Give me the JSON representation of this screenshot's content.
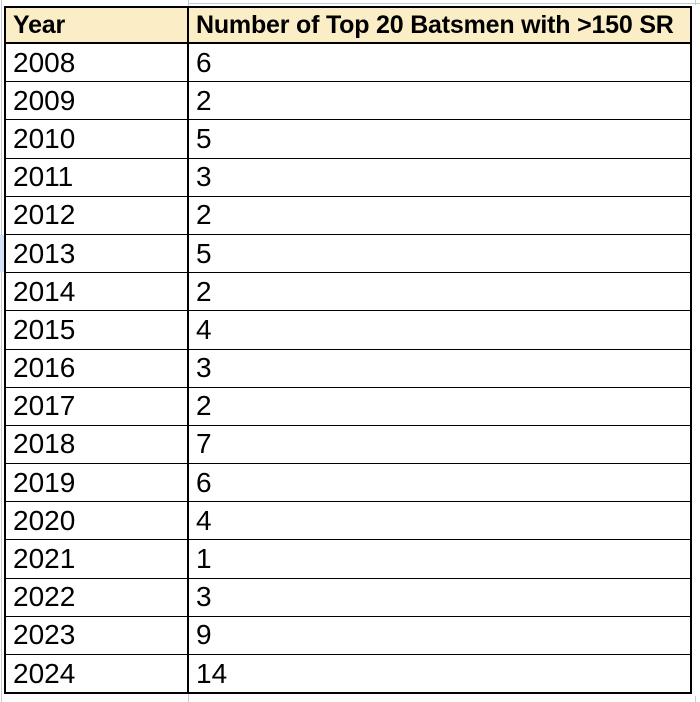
{
  "table": {
    "header": {
      "year_label": "Year",
      "value_label": "Number of Top 20 Batsmen with >150 SR"
    },
    "rows": [
      {
        "year": "2008",
        "value": "6"
      },
      {
        "year": "2009",
        "value": "2"
      },
      {
        "year": "2010",
        "value": "5"
      },
      {
        "year": "2011",
        "value": "3"
      },
      {
        "year": "2012",
        "value": "2"
      },
      {
        "year": "2013",
        "value": "5"
      },
      {
        "year": "2014",
        "value": "2"
      },
      {
        "year": "2015",
        "value": "4"
      },
      {
        "year": "2016",
        "value": "3"
      },
      {
        "year": "2017",
        "value": "2"
      },
      {
        "year": "2018",
        "value": "7"
      },
      {
        "year": "2019",
        "value": "6"
      },
      {
        "year": "2020",
        "value": "4"
      },
      {
        "year": "2021",
        "value": "1"
      },
      {
        "year": "2022",
        "value": "3"
      },
      {
        "year": "2023",
        "value": "9"
      },
      {
        "year": "2024",
        "value": "14"
      }
    ]
  },
  "chart_data": {
    "type": "table",
    "title": "",
    "columns": [
      "Year",
      "Number of Top 20 Batsmen with >150 SR"
    ],
    "categories": [
      "2008",
      "2009",
      "2010",
      "2011",
      "2012",
      "2013",
      "2014",
      "2015",
      "2016",
      "2017",
      "2018",
      "2019",
      "2020",
      "2021",
      "2022",
      "2023",
      "2024"
    ],
    "values": [
      6,
      2,
      5,
      3,
      2,
      5,
      2,
      4,
      3,
      2,
      7,
      6,
      4,
      1,
      3,
      9,
      14
    ]
  },
  "colors": {
    "page_bg": "#FFFFFF",
    "cell_bg": "#FFFFFF",
    "header_bg": "#FBEEC6",
    "border": "#000000",
    "gridline": "#C7CBD1",
    "row_highlight": "#D5E3F8"
  }
}
